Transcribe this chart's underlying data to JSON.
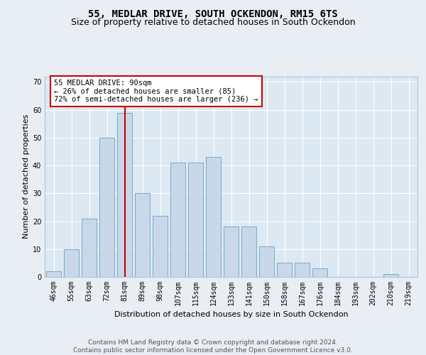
{
  "title": "55, MEDLAR DRIVE, SOUTH OCKENDON, RM15 6TS",
  "subtitle": "Size of property relative to detached houses in South Ockendon",
  "xlabel": "Distribution of detached houses by size in South Ockendon",
  "ylabel": "Number of detached properties",
  "categories": [
    "46sqm",
    "55sqm",
    "63sqm",
    "72sqm",
    "81sqm",
    "89sqm",
    "98sqm",
    "107sqm",
    "115sqm",
    "124sqm",
    "133sqm",
    "141sqm",
    "150sqm",
    "158sqm",
    "167sqm",
    "176sqm",
    "184sqm",
    "193sqm",
    "202sqm",
    "210sqm",
    "219sqm"
  ],
  "values": [
    2,
    10,
    21,
    50,
    59,
    30,
    22,
    41,
    41,
    43,
    18,
    18,
    11,
    5,
    5,
    3,
    0,
    0,
    0,
    1,
    0
  ],
  "bar_color": "#c8d8ea",
  "bar_edgecolor": "#7aaac8",
  "highlight_index": 4,
  "highlight_line_color": "#cc0000",
  "annotation_text": "55 MEDLAR DRIVE: 90sqm\n← 26% of detached houses are smaller (85)\n72% of semi-detached houses are larger (236) →",
  "annotation_box_color": "#ffffff",
  "annotation_box_edgecolor": "#cc0000",
  "ylim": [
    0,
    72
  ],
  "yticks": [
    0,
    10,
    20,
    30,
    40,
    50,
    60,
    70
  ],
  "footer_text": "Contains HM Land Registry data © Crown copyright and database right 2024.\nContains public sector information licensed under the Open Government Licence v3.0.",
  "background_color": "#e8eef4",
  "plot_background_color": "#dce8f2",
  "grid_color": "#ffffff",
  "title_fontsize": 10,
  "subtitle_fontsize": 9,
  "axis_label_fontsize": 8,
  "tick_fontsize": 7,
  "footer_fontsize": 6.5,
  "annotation_fontsize": 7.5
}
